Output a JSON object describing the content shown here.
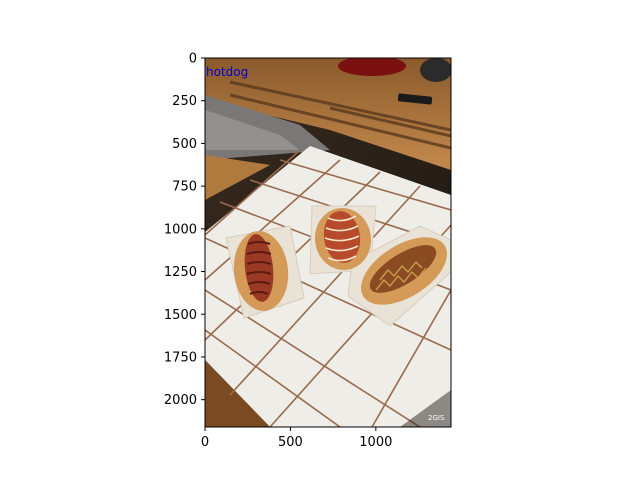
{
  "image": {
    "label": "hotdog",
    "label_color": "#0000cc",
    "watermark": "2GIS",
    "extent": {
      "x": [
        0,
        1440
      ],
      "y": [
        2160,
        0
      ]
    }
  },
  "axes": {
    "x_ticks": [
      0,
      500,
      1000
    ],
    "y_ticks": [
      0,
      250,
      500,
      750,
      1000,
      1250,
      1500,
      1750,
      2000
    ]
  },
  "colors": {
    "background": "#1a1510",
    "wood": "#b07a3e",
    "tile": "#efede7",
    "grout": "#9a6a4c",
    "bun": "#d39a58",
    "sausage": "#9b3a24",
    "tray": "#ebe4d8"
  }
}
